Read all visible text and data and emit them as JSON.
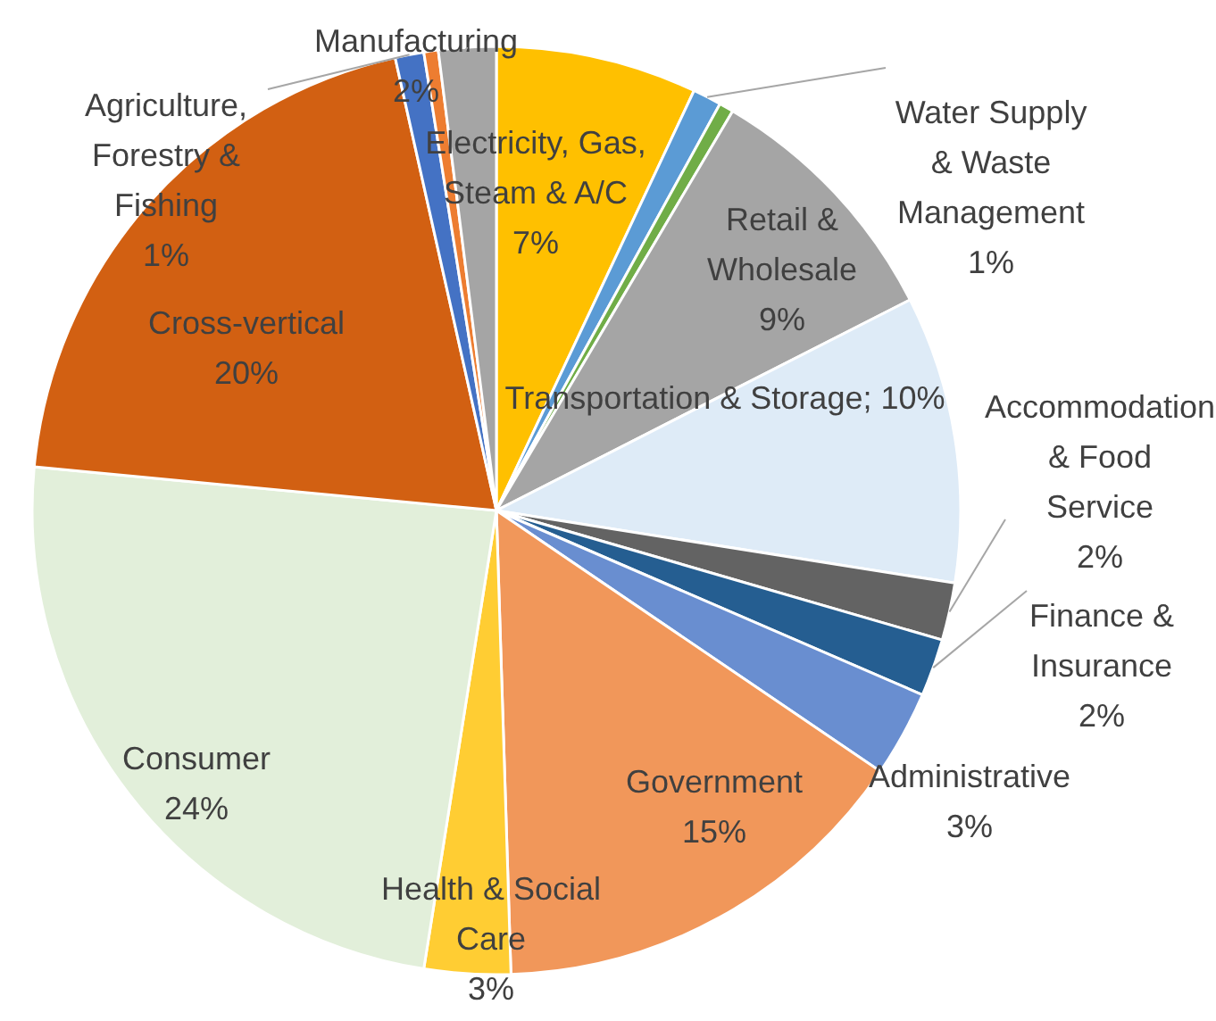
{
  "chart_data": {
    "type": "pie",
    "categories": [
      "Electricity, Gas, Steam & A/C",
      "Water Supply & Waste Management",
      null,
      "Retail & Wholesale",
      "Transportation & Storage",
      "Accommodation & Food Service",
      "Finance & Insurance",
      "Administrative",
      "Government",
      "Health & Social Care",
      "Consumer",
      "Cross-vertical",
      "Agriculture, Forestry & Fishing",
      null,
      "Manufacturing"
    ],
    "values": [
      7,
      1,
      0.5,
      9,
      10,
      2,
      2,
      3,
      15,
      3,
      24,
      20,
      1,
      0.5,
      2
    ],
    "value_labels": [
      "7%",
      "1%",
      null,
      "9%",
      "10%",
      "2%",
      "2%",
      "3%",
      "15%",
      "3%",
      "24%",
      "20%",
      "1%",
      null,
      "2%"
    ],
    "colors": [
      "#ffc000",
      "#5b9bd5",
      "#70ad47",
      "#a5a5a5",
      "#deebf7",
      "#636363",
      "#255e91",
      "#698ed0",
      "#f1975a",
      "#ffcd33",
      "#e2efda",
      "#d26012",
      "#4472c4",
      "#ed7d31",
      "#a5a5a5"
    ]
  }
}
